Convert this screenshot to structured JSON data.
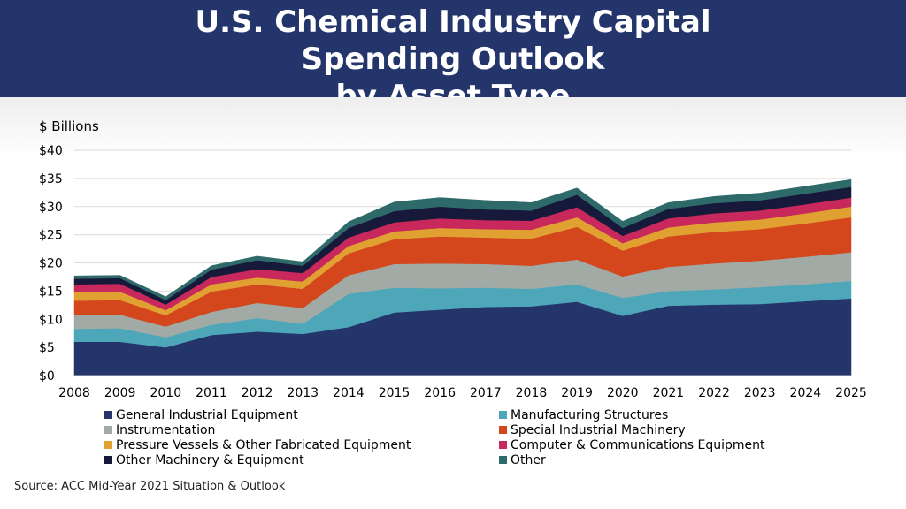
{
  "header": {
    "title_line1": "U.S. Chemical Industry Capital Spending Outlook",
    "title_line2": "by Asset Type"
  },
  "source": "Source: ACC Mid-Year 2021 Situation & Outlook",
  "chart_data": {
    "type": "area",
    "stacked": true,
    "title": "U.S. Chemical Industry Capital Spending Outlook by Asset Type",
    "ylabel": "$ Billions",
    "xlabel": "",
    "ylim": [
      0,
      40
    ],
    "yticks": [
      0,
      5,
      10,
      15,
      20,
      25,
      30,
      35,
      40
    ],
    "ytick_labels": [
      "$0",
      "$5",
      "$10",
      "$15",
      "$20",
      "$25",
      "$30",
      "$35",
      "$40"
    ],
    "grid": true,
    "legend_position": "bottom",
    "x": [
      "2008",
      "2009",
      "2010",
      "2011",
      "2012",
      "2013",
      "2014",
      "2015",
      "2016",
      "2017",
      "2018",
      "2019",
      "2020",
      "2021",
      "2022",
      "2023",
      "2024",
      "2025"
    ],
    "series": [
      {
        "name": "General Industrial Equipment",
        "color": "#24356b",
        "values": [
          6.0,
          6.0,
          5.0,
          7.2,
          7.8,
          7.4,
          8.6,
          11.2,
          11.7,
          12.2,
          12.3,
          13.1,
          10.6,
          12.4,
          12.6,
          12.7,
          13.2,
          13.7
        ]
      },
      {
        "name": "Manufacturing Structures",
        "color": "#4da7b9",
        "values": [
          2.3,
          2.4,
          1.8,
          1.8,
          2.4,
          1.8,
          5.9,
          4.4,
          3.8,
          3.4,
          3.1,
          3.1,
          3.2,
          2.6,
          2.7,
          3.0,
          3.0,
          3.1
        ]
      },
      {
        "name": "Instrumentation",
        "color": "#a2aaa6",
        "values": [
          2.4,
          2.4,
          1.9,
          2.3,
          2.7,
          2.8,
          3.3,
          4.2,
          4.4,
          4.2,
          4.1,
          4.4,
          3.8,
          4.3,
          4.6,
          4.7,
          4.9,
          5.1
        ]
      },
      {
        "name": "Special Industrial Machinery",
        "color": "#d4461c",
        "values": [
          2.6,
          2.6,
          2.0,
          3.6,
          3.3,
          3.4,
          3.9,
          4.4,
          4.8,
          4.7,
          4.8,
          5.8,
          4.6,
          5.4,
          5.6,
          5.6,
          5.9,
          6.2
        ]
      },
      {
        "name": "Pressure Vessels & Other Fabricated Equipment",
        "color": "#e0a032",
        "values": [
          1.5,
          1.5,
          0.9,
          1.3,
          1.2,
          1.3,
          1.3,
          1.4,
          1.5,
          1.5,
          1.6,
          1.7,
          1.3,
          1.6,
          1.7,
          1.7,
          1.8,
          1.9
        ]
      },
      {
        "name": "Computer & Communications Equipment",
        "color": "#c8285b",
        "values": [
          1.4,
          1.4,
          1.0,
          1.3,
          1.5,
          1.5,
          1.5,
          1.6,
          1.7,
          1.6,
          1.6,
          1.8,
          1.3,
          1.6,
          1.6,
          1.6,
          1.6,
          1.6
        ]
      },
      {
        "name": "Other Machinery & Equipment",
        "color": "#17193a",
        "values": [
          1.0,
          1.0,
          0.8,
          1.3,
          1.6,
          1.3,
          1.7,
          2.0,
          2.1,
          1.9,
          1.8,
          2.2,
          1.4,
          1.7,
          1.8,
          1.8,
          1.9,
          1.9
        ]
      },
      {
        "name": "Other",
        "color": "#2f6a6b",
        "values": [
          0.5,
          0.5,
          0.6,
          0.7,
          0.7,
          0.7,
          1.1,
          1.6,
          1.6,
          1.6,
          1.4,
          1.2,
          1.2,
          1.1,
          1.2,
          1.3,
          1.3,
          1.3
        ]
      }
    ]
  }
}
